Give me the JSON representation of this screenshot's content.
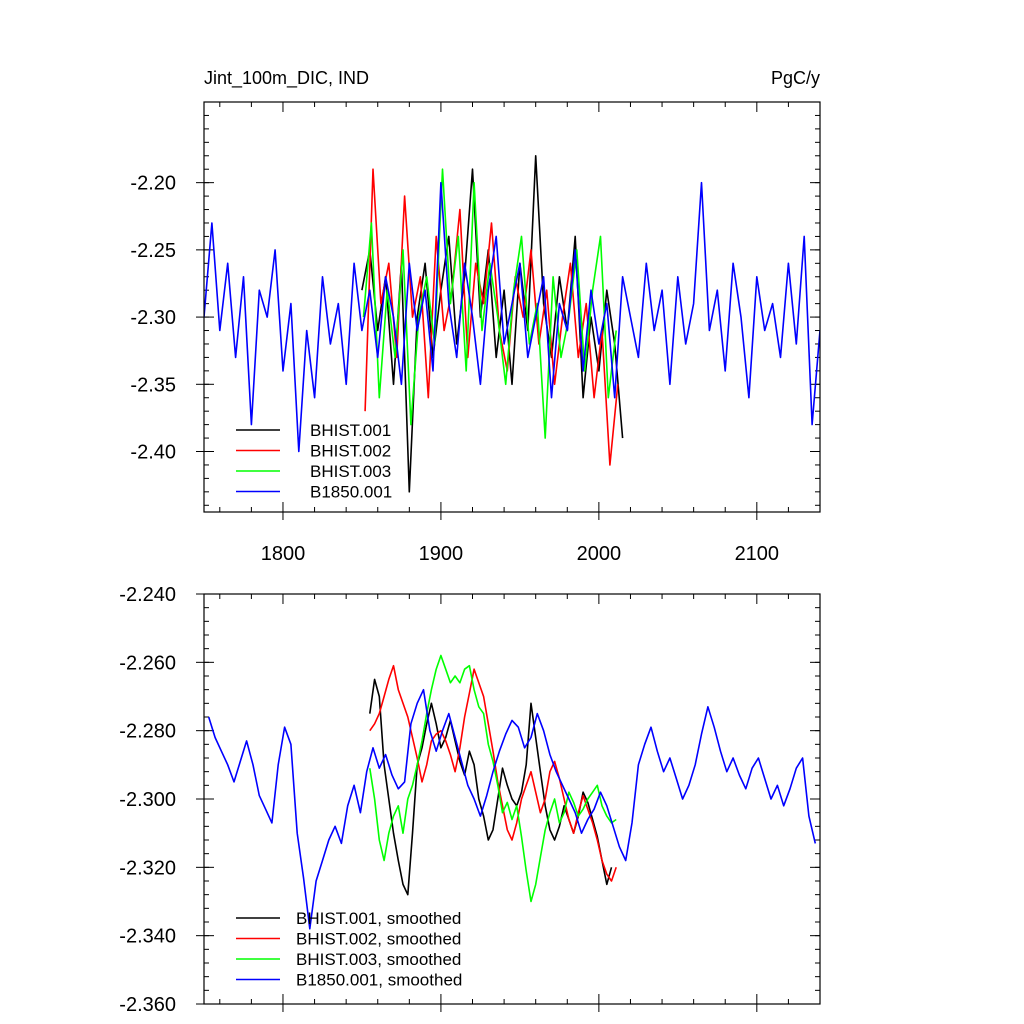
{
  "figure": {
    "title_left": "Jint_100m_DIC, IND",
    "title_right": "PgC/y"
  },
  "chart_data": [
    {
      "type": "line",
      "title": "Jint_100m_DIC, IND",
      "units": "PgC/y",
      "xlim": [
        1750,
        2140
      ],
      "ylim": [
        -2.445,
        -2.14
      ],
      "xticks": [
        "1800",
        "1900",
        "2000",
        "2100"
      ],
      "yticks": [
        "-2.20",
        "-2.25",
        "-2.30",
        "-2.35",
        "-2.40"
      ],
      "ytick_values": [
        -2.2,
        -2.25,
        -2.3,
        -2.35,
        -2.4
      ],
      "legend_position": "bottom-left",
      "series": [
        {
          "name": "BHIST.001",
          "color": "#000000",
          "x": [
            1850,
            1855,
            1860,
            1865,
            1870,
            1875,
            1880,
            1885,
            1890,
            1895,
            1900,
            1905,
            1910,
            1915,
            1920,
            1925,
            1930,
            1935,
            1940,
            1945,
            1950,
            1955,
            1960,
            1965,
            1970,
            1975,
            1980,
            1985,
            1990,
            1995,
            2000,
            2005,
            2010,
            2015
          ],
          "y": [
            -2.28,
            -2.25,
            -2.31,
            -2.27,
            -2.35,
            -2.26,
            -2.43,
            -2.3,
            -2.26,
            -2.33,
            -2.28,
            -2.24,
            -2.32,
            -2.27,
            -2.19,
            -2.3,
            -2.25,
            -2.33,
            -2.28,
            -2.35,
            -2.26,
            -2.31,
            -2.18,
            -2.29,
            -2.33,
            -2.27,
            -2.31,
            -2.24,
            -2.36,
            -2.3,
            -2.34,
            -2.28,
            -2.32,
            -2.39
          ]
        },
        {
          "name": "BHIST.002",
          "color": "#ff0000",
          "x": [
            1852,
            1857,
            1862,
            1867,
            1872,
            1877,
            1882,
            1887,
            1892,
            1897,
            1902,
            1907,
            1912,
            1917,
            1922,
            1927,
            1932,
            1937,
            1942,
            1947,
            1952,
            1957,
            1962,
            1967,
            1972,
            1977,
            1982,
            1987,
            1992,
            1997,
            2002,
            2007,
            2012
          ],
          "y": [
            -2.37,
            -2.19,
            -2.29,
            -2.26,
            -2.33,
            -2.21,
            -2.3,
            -2.27,
            -2.36,
            -2.24,
            -2.31,
            -2.28,
            -2.22,
            -2.33,
            -2.26,
            -2.29,
            -2.23,
            -2.31,
            -2.34,
            -2.27,
            -2.3,
            -2.25,
            -2.32,
            -2.28,
            -2.35,
            -2.3,
            -2.26,
            -2.33,
            -2.29,
            -2.36,
            -2.31,
            -2.41,
            -2.35
          ]
        },
        {
          "name": "BHIST.003",
          "color": "#00ff00",
          "x": [
            1851,
            1856,
            1861,
            1866,
            1871,
            1876,
            1881,
            1886,
            1891,
            1896,
            1901,
            1906,
            1911,
            1916,
            1921,
            1926,
            1931,
            1936,
            1941,
            1946,
            1951,
            1956,
            1961,
            1966,
            1971,
            1976,
            1981,
            1986,
            1991,
            1996,
            2001,
            2006,
            2011
          ],
          "y": [
            -2.3,
            -2.23,
            -2.36,
            -2.28,
            -2.33,
            -2.25,
            -2.38,
            -2.3,
            -2.27,
            -2.32,
            -2.19,
            -2.29,
            -2.24,
            -2.34,
            -2.2,
            -2.31,
            -2.26,
            -2.3,
            -2.35,
            -2.28,
            -2.24,
            -2.32,
            -2.29,
            -2.39,
            -2.27,
            -2.33,
            -2.3,
            -2.25,
            -2.34,
            -2.28,
            -2.24,
            -2.36,
            -2.31
          ]
        },
        {
          "name": "B1850.001",
          "color": "#0000ff",
          "x": [
            1750,
            1755,
            1760,
            1765,
            1770,
            1775,
            1780,
            1785,
            1790,
            1795,
            1800,
            1805,
            1810,
            1815,
            1820,
            1825,
            1830,
            1835,
            1840,
            1845,
            1850,
            1855,
            1860,
            1865,
            1870,
            1875,
            1880,
            1885,
            1890,
            1895,
            1900,
            1905,
            1910,
            1915,
            1920,
            1925,
            1930,
            1935,
            1940,
            1945,
            1950,
            1955,
            1960,
            1965,
            1970,
            1975,
            1980,
            1985,
            1990,
            1995,
            2000,
            2005,
            2010,
            2015,
            2020,
            2025,
            2030,
            2035,
            2040,
            2045,
            2050,
            2055,
            2060,
            2065,
            2070,
            2075,
            2080,
            2085,
            2090,
            2095,
            2100,
            2105,
            2110,
            2115,
            2120,
            2125,
            2130,
            2135,
            2140
          ],
          "y": [
            -2.3,
            -2.23,
            -2.31,
            -2.26,
            -2.33,
            -2.27,
            -2.38,
            -2.28,
            -2.3,
            -2.25,
            -2.34,
            -2.29,
            -2.4,
            -2.31,
            -2.36,
            -2.27,
            -2.32,
            -2.29,
            -2.35,
            -2.26,
            -2.31,
            -2.28,
            -2.33,
            -2.27,
            -2.3,
            -2.35,
            -2.26,
            -2.31,
            -2.28,
            -2.34,
            -2.2,
            -2.29,
            -2.33,
            -2.26,
            -2.3,
            -2.35,
            -2.28,
            -2.24,
            -2.32,
            -2.29,
            -2.26,
            -2.33,
            -2.3,
            -2.27,
            -2.36,
            -2.29,
            -2.31,
            -2.25,
            -2.34,
            -2.28,
            -2.32,
            -2.29,
            -2.36,
            -2.27,
            -2.3,
            -2.33,
            -2.26,
            -2.31,
            -2.28,
            -2.35,
            -2.27,
            -2.32,
            -2.29,
            -2.2,
            -2.31,
            -2.28,
            -2.34,
            -2.26,
            -2.3,
            -2.36,
            -2.27,
            -2.31,
            -2.29,
            -2.33,
            -2.26,
            -2.32,
            -2.24,
            -2.38,
            -2.31
          ]
        }
      ]
    },
    {
      "type": "line",
      "xlim": [
        1750,
        2140
      ],
      "ylim": [
        -2.36,
        -2.24
      ],
      "yticks": [
        "-2.240",
        "-2.260",
        "-2.280",
        "-2.300",
        "-2.320",
        "-2.340",
        "-2.360"
      ],
      "ytick_values": [
        -2.24,
        -2.26,
        -2.28,
        -2.3,
        -2.32,
        -2.34,
        -2.36
      ],
      "legend_position": "bottom-left",
      "series": [
        {
          "name": "BHIST.001, smoothed",
          "color": "#000000",
          "x": [
            1855,
            1858,
            1861,
            1864,
            1867,
            1870,
            1873,
            1876,
            1879,
            1882,
            1885,
            1888,
            1891,
            1894,
            1897,
            1900,
            1903,
            1906,
            1909,
            1912,
            1915,
            1918,
            1921,
            1924,
            1927,
            1930,
            1933,
            1936,
            1939,
            1942,
            1945,
            1948,
            1951,
            1954,
            1957,
            1960,
            1963,
            1966,
            1969,
            1972,
            1975,
            1978,
            1981,
            1984,
            1987,
            1990,
            1993,
            1996,
            1999,
            2002,
            2005,
            2008
          ],
          "y": [
            -2.275,
            -2.265,
            -2.27,
            -2.29,
            -2.3,
            -2.31,
            -2.318,
            -2.325,
            -2.328,
            -2.31,
            -2.29,
            -2.285,
            -2.278,
            -2.272,
            -2.278,
            -2.285,
            -2.282,
            -2.277,
            -2.283,
            -2.289,
            -2.293,
            -2.286,
            -2.29,
            -2.3,
            -2.305,
            -2.312,
            -2.309,
            -2.3,
            -2.291,
            -2.296,
            -2.3,
            -2.302,
            -2.298,
            -2.29,
            -2.272,
            -2.282,
            -2.292,
            -2.302,
            -2.309,
            -2.312,
            -2.308,
            -2.302,
            -2.306,
            -2.31,
            -2.305,
            -2.298,
            -2.301,
            -2.306,
            -2.311,
            -2.318,
            -2.325,
            -2.32
          ]
        },
        {
          "name": "BHIST.002, smoothed",
          "color": "#ff0000",
          "x": [
            1855,
            1858,
            1861,
            1864,
            1867,
            1870,
            1873,
            1876,
            1879,
            1882,
            1885,
            1888,
            1891,
            1894,
            1897,
            1900,
            1903,
            1906,
            1909,
            1912,
            1915,
            1918,
            1921,
            1924,
            1927,
            1930,
            1933,
            1936,
            1939,
            1942,
            1945,
            1948,
            1951,
            1954,
            1957,
            1960,
            1963,
            1966,
            1969,
            1972,
            1975,
            1978,
            1981,
            1984,
            1987,
            1990,
            1993,
            1996,
            1999,
            2002,
            2005,
            2008,
            2011
          ],
          "y": [
            -2.28,
            -2.278,
            -2.275,
            -2.27,
            -2.265,
            -2.261,
            -2.268,
            -2.272,
            -2.276,
            -2.282,
            -2.288,
            -2.295,
            -2.29,
            -2.283,
            -2.281,
            -2.28,
            -2.283,
            -2.287,
            -2.292,
            -2.285,
            -2.276,
            -2.269,
            -2.262,
            -2.266,
            -2.27,
            -2.278,
            -2.286,
            -2.295,
            -2.302,
            -2.309,
            -2.312,
            -2.307,
            -2.3,
            -2.296,
            -2.292,
            -2.298,
            -2.304,
            -2.3,
            -2.292,
            -2.289,
            -2.294,
            -2.3,
            -2.306,
            -2.31,
            -2.304,
            -2.299,
            -2.303,
            -2.307,
            -2.312,
            -2.318,
            -2.322,
            -2.324,
            -2.32
          ]
        },
        {
          "name": "BHIST.003, smoothed",
          "color": "#00ff00",
          "x": [
            1855,
            1858,
            1861,
            1864,
            1867,
            1870,
            1873,
            1876,
            1879,
            1882,
            1885,
            1888,
            1891,
            1894,
            1897,
            1900,
            1903,
            1906,
            1909,
            1912,
            1915,
            1918,
            1921,
            1924,
            1927,
            1930,
            1933,
            1936,
            1939,
            1942,
            1945,
            1948,
            1951,
            1954,
            1957,
            1960,
            1963,
            1966,
            1969,
            1972,
            1975,
            1978,
            1981,
            1984,
            1987,
            1990,
            1993,
            1996,
            1999,
            2002,
            2005,
            2008,
            2011
          ],
          "y": [
            -2.291,
            -2.3,
            -2.312,
            -2.318,
            -2.31,
            -2.305,
            -2.302,
            -2.31,
            -2.3,
            -2.296,
            -2.29,
            -2.283,
            -2.275,
            -2.268,
            -2.262,
            -2.258,
            -2.262,
            -2.266,
            -2.264,
            -2.266,
            -2.262,
            -2.261,
            -2.268,
            -2.273,
            -2.275,
            -2.284,
            -2.289,
            -2.296,
            -2.304,
            -2.301,
            -2.306,
            -2.302,
            -2.311,
            -2.321,
            -2.33,
            -2.325,
            -2.317,
            -2.309,
            -2.304,
            -2.3,
            -2.307,
            -2.304,
            -2.298,
            -2.301,
            -2.305,
            -2.303,
            -2.3,
            -2.298,
            -2.296,
            -2.302,
            -2.305,
            -2.307,
            -2.306
          ]
        },
        {
          "name": "B1850.001, smoothed",
          "color": "#0000ff",
          "x": [
            1753,
            1757,
            1761,
            1765,
            1769,
            1773,
            1777,
            1781,
            1785,
            1789,
            1793,
            1797,
            1801,
            1805,
            1809,
            1813,
            1817,
            1821,
            1825,
            1829,
            1833,
            1837,
            1841,
            1845,
            1849,
            1853,
            1857,
            1861,
            1865,
            1869,
            1873,
            1877,
            1881,
            1885,
            1889,
            1893,
            1897,
            1901,
            1905,
            1909,
            1913,
            1917,
            1921,
            1925,
            1929,
            1933,
            1937,
            1941,
            1945,
            1949,
            1953,
            1957,
            1961,
            1965,
            1969,
            1973,
            1977,
            1981,
            1985,
            1989,
            1993,
            1997,
            2001,
            2005,
            2009,
            2013,
            2017,
            2021,
            2025,
            2029,
            2033,
            2037,
            2041,
            2045,
            2049,
            2053,
            2057,
            2061,
            2065,
            2069,
            2073,
            2077,
            2081,
            2085,
            2089,
            2093,
            2097,
            2101,
            2105,
            2109,
            2113,
            2117,
            2121,
            2125,
            2129,
            2133,
            2137
          ],
          "y": [
            -2.276,
            -2.282,
            -2.286,
            -2.29,
            -2.295,
            -2.289,
            -2.283,
            -2.29,
            -2.299,
            -2.303,
            -2.307,
            -2.29,
            -2.279,
            -2.284,
            -2.31,
            -2.323,
            -2.338,
            -2.324,
            -2.318,
            -2.312,
            -2.308,
            -2.313,
            -2.302,
            -2.296,
            -2.304,
            -2.292,
            -2.285,
            -2.291,
            -2.287,
            -2.293,
            -2.297,
            -2.295,
            -2.278,
            -2.272,
            -2.268,
            -2.28,
            -2.286,
            -2.28,
            -2.275,
            -2.282,
            -2.289,
            -2.296,
            -2.3,
            -2.305,
            -2.299,
            -2.292,
            -2.286,
            -2.281,
            -2.277,
            -2.279,
            -2.285,
            -2.282,
            -2.275,
            -2.28,
            -2.287,
            -2.292,
            -2.296,
            -2.3,
            -2.304,
            -2.31,
            -2.306,
            -2.303,
            -2.298,
            -2.302,
            -2.308,
            -2.314,
            -2.318,
            -2.307,
            -2.29,
            -2.284,
            -2.279,
            -2.286,
            -2.292,
            -2.288,
            -2.294,
            -2.3,
            -2.296,
            -2.29,
            -2.281,
            -2.273,
            -2.279,
            -2.286,
            -2.292,
            -2.288,
            -2.293,
            -2.297,
            -2.291,
            -2.288,
            -2.294,
            -2.3,
            -2.296,
            -2.302,
            -2.297,
            -2.291,
            -2.288,
            -2.305,
            -2.313
          ]
        }
      ]
    }
  ]
}
